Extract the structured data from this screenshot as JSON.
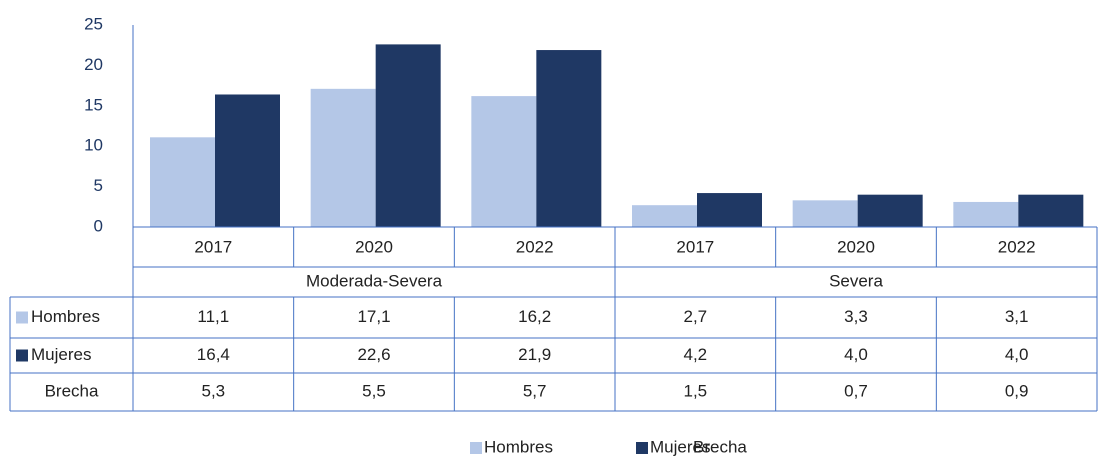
{
  "chart_data": {
    "type": "bar",
    "groups": [
      {
        "name": "Moderada-Severa",
        "categories": [
          "2017",
          "2020",
          "2022"
        ]
      },
      {
        "name": "Severa",
        "categories": [
          "2017",
          "2020",
          "2022"
        ]
      }
    ],
    "series": [
      {
        "name": "Hombres",
        "color": "#b4c7e7",
        "values": [
          11.1,
          17.1,
          16.2,
          2.7,
          3.3,
          3.1
        ],
        "value_labels": [
          "11,1",
          "17,1",
          "16,2",
          "2,7",
          "3,3",
          "3,1"
        ]
      },
      {
        "name": "Mujeres",
        "color": "#1f3864",
        "values": [
          16.4,
          22.6,
          21.9,
          4.2,
          4.0,
          4.0
        ],
        "value_labels": [
          "16,4",
          "22,6",
          "21,9",
          "4,2",
          "4,0",
          "4,0"
        ]
      },
      {
        "name": "Brecha",
        "color": "none",
        "values": [
          5.3,
          5.5,
          5.7,
          1.5,
          0.7,
          0.9
        ],
        "value_labels": [
          "5,3",
          "5,5",
          "5,7",
          "1,5",
          "0,7",
          "0,9"
        ]
      }
    ],
    "ylim": [
      0,
      25
    ],
    "yticks": [
      0,
      5,
      10,
      15,
      20,
      25
    ],
    "grid": false
  }
}
